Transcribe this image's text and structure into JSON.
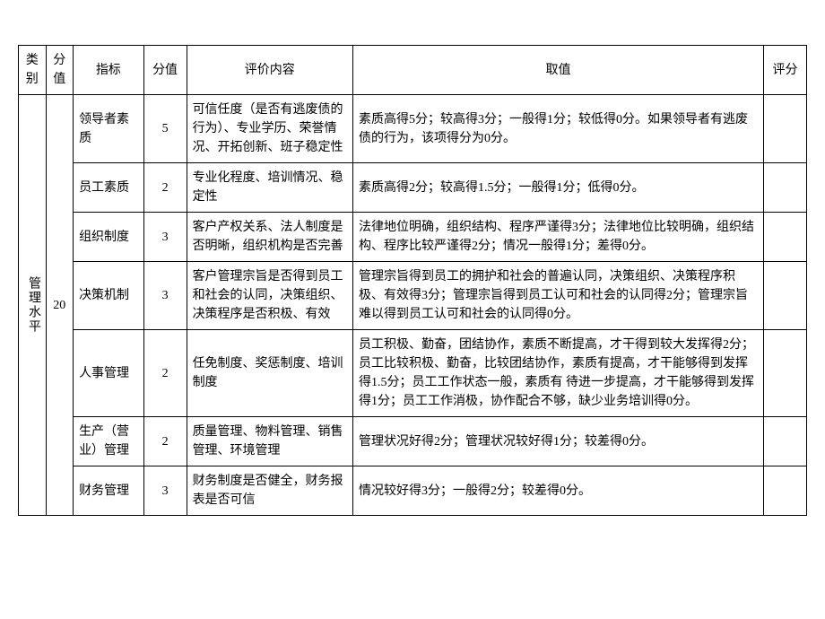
{
  "colors": {
    "border": "#000000",
    "background": "#ffffff",
    "text": "#000000"
  },
  "typography": {
    "font_family": "SimSun",
    "font_size_pt": 10.5,
    "line_height": 1.5
  },
  "headers": {
    "category": "类别",
    "weight": "分值",
    "indicator": "指标",
    "sub_weight": "分值",
    "eval_content": "评价内容",
    "value_rule": "取值",
    "score": "评分"
  },
  "category": {
    "name": "管理水平",
    "weight": "20"
  },
  "rows": [
    {
      "indicator": "领导者素质",
      "sub_weight": "5",
      "eval_content": "可信任度（是否有逃废债的行为）、专业学历、荣誉情况、开拓创新、班子稳定性",
      "value_rule": "素质高得5分；较高得3分；一般得1分；较低得0分。如果领导者有逃废债的行为，该项得分为0分。"
    },
    {
      "indicator": "员工素质",
      "sub_weight": "2",
      "eval_content": "专业化程度、培训情况、稳定性",
      "value_rule": "素质高得2分；较高得1.5分；一般得1分；低得0分。"
    },
    {
      "indicator": "组织制度",
      "sub_weight": "3",
      "eval_content": "客户产权关系、法人制度是否明晰，组织机构是否完善",
      "value_rule": "法律地位明确，组织结构、程序严谨得3分；法律地位比较明确，组织结构、程序比较严谨得2分；情况一般得1分；差得0分。"
    },
    {
      "indicator": "决策机制",
      "sub_weight": "3",
      "eval_content": "客户管理宗旨是否得到员工和社会的认同，决策组织、决策程序是否积极、有效",
      "value_rule": "管理宗旨得到员工的拥护和社会的普遍认同，决策组织、决策程序积极、有效得3分；管理宗旨得到员工认可和社会的认同得2分；管理宗旨难以得到员工认可和社会的认同得0分。"
    },
    {
      "indicator": "人事管理",
      "sub_weight": "2",
      "eval_content": "任免制度、奖惩制度、培训制度",
      "value_rule": "员工积极、勤奋，团结协作，素质不断提高，才干得到较大发挥得2分；员工比较积极、勤奋，比较团结协作，素质有提高，才干能够得到发挥得1.5分；员工工作状态一般，素质有 待进一步提高，才干能够得到发挥得1分；员工工作消极，协作配合不够，缺少业务培训得0分。"
    },
    {
      "indicator": "生产（营业）管理",
      "sub_weight": "2",
      "eval_content": "质量管理、物料管理、销售管理、环境管理",
      "value_rule": "管理状况好得2分；管理状况较好得1分；较差得0分。"
    },
    {
      "indicator": "财务管理",
      "sub_weight": "3",
      "eval_content": "财务制度是否健全，财务报表是否可信",
      "value_rule": "情况较好得3分；一般得2分；较差得0分。"
    }
  ]
}
